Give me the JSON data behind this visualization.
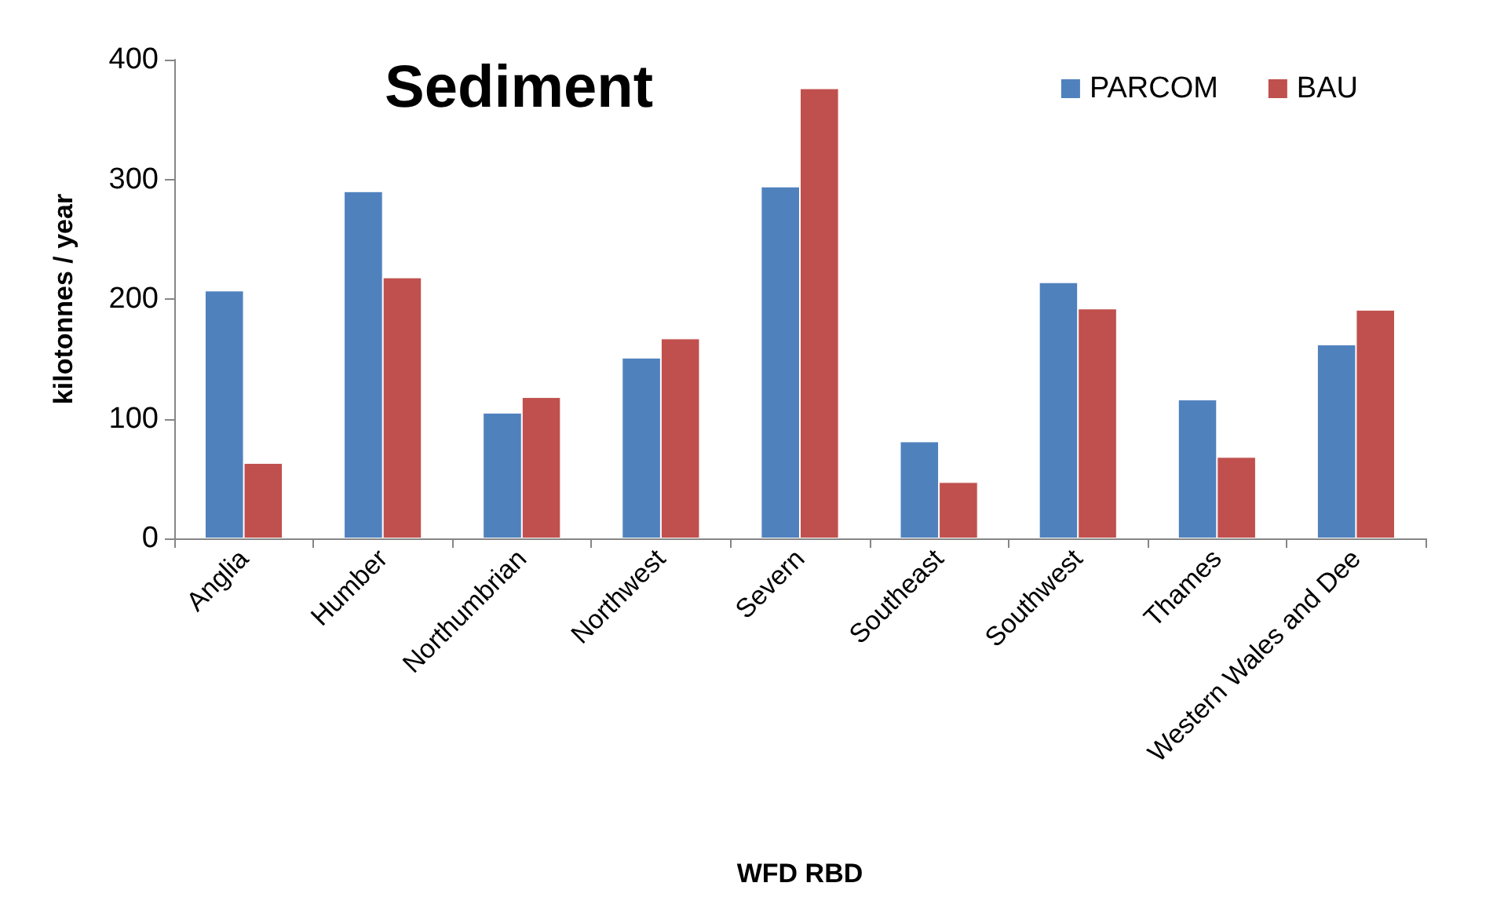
{
  "chart_data": {
    "type": "bar",
    "title": "Sediment",
    "xlabel": "WFD RBD",
    "ylabel": "kilotonnes / year",
    "categories": [
      "Anglia",
      "Humber",
      "Northumbrian",
      "Northwest",
      "Severn",
      "Southeast",
      "Southwest",
      "Thames",
      "Western Wales and Dee"
    ],
    "series": [
      {
        "name": "PARCOM",
        "color": "#4f81bd",
        "values": [
          207,
          290,
          105,
          151,
          294,
          81,
          214,
          116,
          162
        ]
      },
      {
        "name": "BAU",
        "color": "#c0504d",
        "values": [
          63,
          218,
          118,
          167,
          376,
          47,
          192,
          68,
          191
        ]
      }
    ],
    "ylim": [
      0,
      400
    ],
    "yticks": [
      0,
      100,
      200,
      300,
      400
    ],
    "grid": false,
    "legend": "top right"
  }
}
